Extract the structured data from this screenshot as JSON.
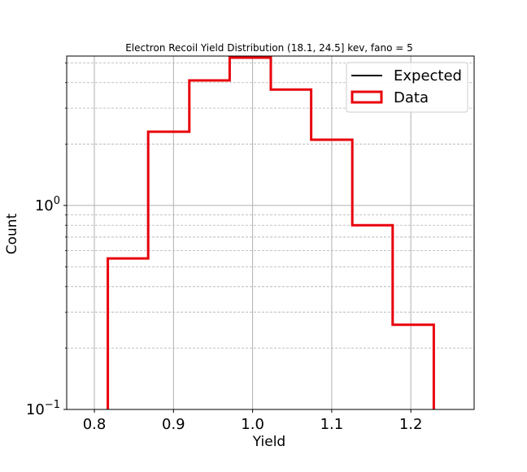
{
  "chart_data": {
    "type": "histogram",
    "title": "Electron Recoil Yield Distribution (18.1, 24.5] kev, fano = 5",
    "xlabel": "Yield",
    "ylabel": "Count",
    "x_scale": "linear",
    "y_scale": "log",
    "xlim": [
      0.765,
      1.28
    ],
    "ylim": [
      0.1,
      5.4
    ],
    "xticks": [
      0.8,
      0.9,
      1.0,
      1.1,
      1.2
    ],
    "xtick_labels": [
      "0.8",
      "0.9",
      "1.0",
      "1.1",
      "1.2"
    ],
    "ytick_labels": [
      {
        "value": 1,
        "base": "10",
        "exp": "0"
      },
      {
        "value": 0.1,
        "base": "10",
        "exp": "−1"
      }
    ],
    "grid": true,
    "legend_position": "top-right",
    "series": [
      {
        "name": "Expected",
        "style": "line",
        "color": "#000000",
        "values": []
      },
      {
        "name": "Data",
        "style": "step",
        "color": "#e8000b",
        "bin_edges": [
          0.817,
          0.868,
          0.92,
          0.971,
          1.023,
          1.074,
          1.126,
          1.177,
          1.229
        ],
        "values": [
          0.55,
          2.3,
          4.1,
          5.3,
          3.7,
          2.1,
          0.8,
          0.26
        ]
      }
    ]
  }
}
